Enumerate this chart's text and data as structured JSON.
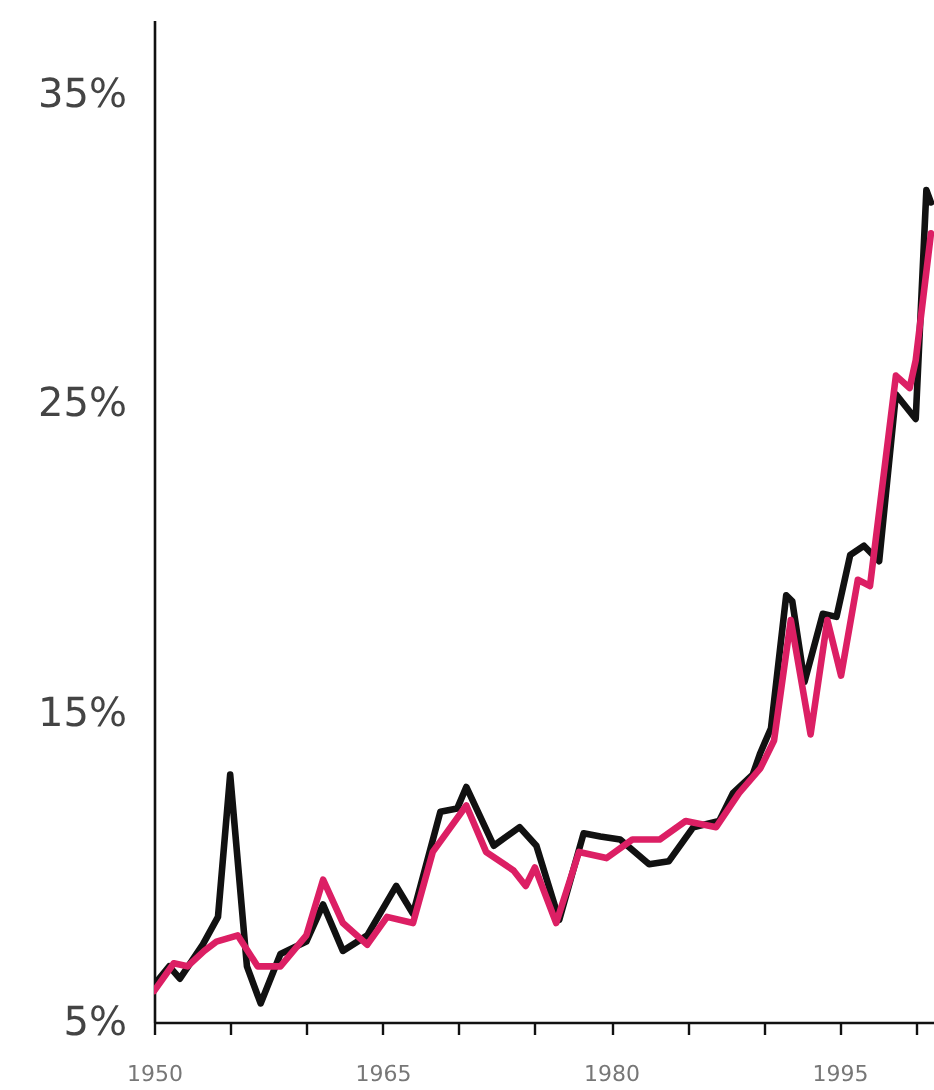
{
  "chart_data": {
    "type": "line",
    "series": [
      {
        "color": "#111111",
        "x": [
          1950.0,
          1951.0,
          1951.7,
          1953.2,
          1954.2,
          1955.0,
          1956.1,
          1957.0,
          1958.3,
          1960.0,
          1961.1,
          1962.4,
          1964.0,
          1965.9,
          1967.0,
          1968.8,
          1969.9,
          1970.5,
          1972.3,
          1974.0,
          1975.1,
          1976.6,
          1978.2,
          1979.3,
          1980.6,
          1982.5,
          1983.8,
          1985.4,
          1987.1,
          1988.0,
          1989.3,
          1989.8,
          1990.5,
          1991.5,
          1991.9,
          1992.7,
          1993.9,
          1994.8,
          1995.7,
          1996.6,
          1997.6,
          1998.7,
          2000.0,
          2000.7,
          2001.0
        ],
        "values": [
          6.2,
          6.8,
          6.4,
          7.5,
          8.4,
          13.0,
          6.8,
          5.6,
          7.2,
          7.6,
          8.8,
          7.3,
          7.8,
          9.4,
          8.5,
          11.8,
          11.9,
          12.6,
          10.7,
          11.3,
          10.7,
          8.3,
          11.1,
          11.0,
          10.9,
          10.1,
          10.2,
          11.3,
          11.5,
          12.4,
          13.0,
          13.7,
          14.5,
          18.8,
          18.6,
          16.0,
          18.2,
          18.1,
          20.1,
          20.4,
          19.9,
          25.3,
          24.5,
          31.9,
          31.5
        ]
      },
      {
        "color": "#dc1f64",
        "x": [
          1950.0,
          1951.3,
          1952.2,
          1953.3,
          1954.1,
          1955.5,
          1956.8,
          1958.3,
          1960.0,
          1961.1,
          1962.4,
          1964.0,
          1965.3,
          1967.0,
          1968.3,
          1970.5,
          1971.8,
          1973.6,
          1974.4,
          1975.0,
          1976.4,
          1977.9,
          1979.7,
          1981.4,
          1983.2,
          1984.9,
          1986.9,
          1988.4,
          1989.8,
          1990.7,
          1991.8,
          1993.1,
          1994.2,
          1995.1,
          1996.2,
          1997.0,
          1998.7,
          1999.6,
          2000.0,
          2001.0
        ],
        "values": [
          6.0,
          6.9,
          6.8,
          7.3,
          7.6,
          7.8,
          6.8,
          6.8,
          7.8,
          9.6,
          8.2,
          7.5,
          8.4,
          8.2,
          10.5,
          12.0,
          10.5,
          9.9,
          9.4,
          10.0,
          8.2,
          10.5,
          10.3,
          10.9,
          10.9,
          11.5,
          11.3,
          12.4,
          13.2,
          14.1,
          18.0,
          14.3,
          18.0,
          16.2,
          19.3,
          19.1,
          25.9,
          25.5,
          26.4,
          30.5
        ]
      }
    ],
    "xlim": [
      1950,
      2001.2
    ],
    "ylim": [
      5,
      37.4
    ],
    "xticks": [
      1950,
      {
        "value": 1955,
        "label": null
      },
      {
        "value": 1960,
        "label": null
      },
      1965,
      {
        "value": 1970,
        "label": null
      },
      {
        "value": 1975,
        "label": null
      },
      1980,
      {
        "value": 1985,
        "label": null
      },
      {
        "value": 1990,
        "label": null
      },
      1995,
      {
        "value": 2000,
        "label": null
      }
    ],
    "yticks": [
      {
        "value": 5,
        "label": "5%"
      },
      {
        "value": 15,
        "label": "15%"
      },
      {
        "value": 25,
        "label": "25%"
      },
      {
        "value": 35,
        "label": "35%"
      }
    ],
    "line_style": "solid"
  }
}
